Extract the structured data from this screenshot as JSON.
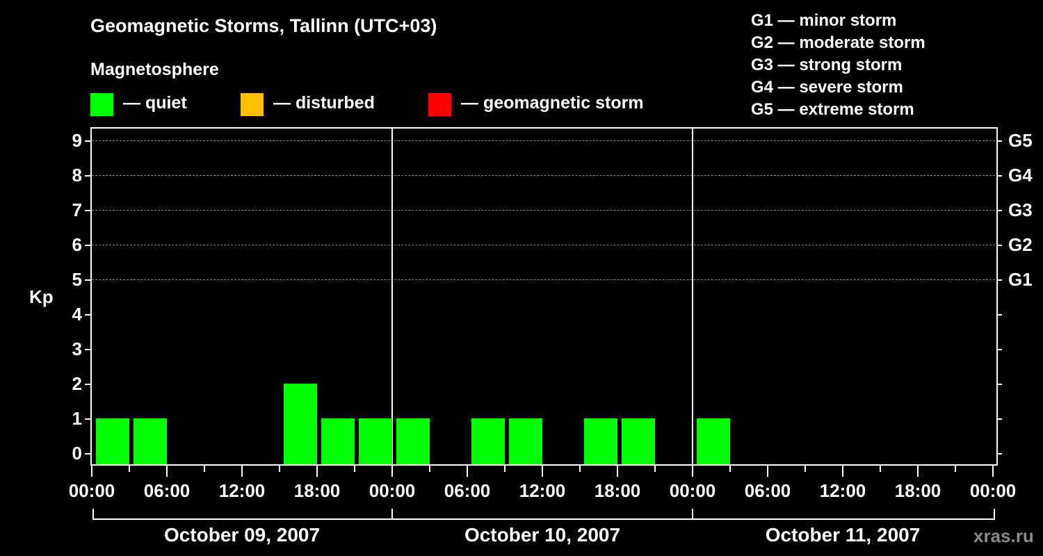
{
  "title": "Geomagnetic Storms, Tallinn (UTC+03)",
  "subtitle": "Magnetosphere",
  "legend": [
    {
      "label": "— quiet",
      "color": "#00ff00"
    },
    {
      "label": "— disturbed",
      "color": "#ffbf00"
    },
    {
      "label": "— geomagnetic storm",
      "color": "#ff0000"
    }
  ],
  "g_scale": [
    "G1 — minor storm",
    "G2 — moderate storm",
    "G3 — strong storm",
    "G4 — severe storm",
    "G5 — extreme storm"
  ],
  "watermark": "xras.ru",
  "chart_data": {
    "type": "bar",
    "title": "Geomagnetic Storms, Tallinn (UTC+03)",
    "ylabel": "Kp",
    "xlabel": "",
    "ylim": [
      0,
      9
    ],
    "yticks": [
      0,
      1,
      2,
      3,
      4,
      5,
      6,
      7,
      8,
      9
    ],
    "right_ticks": {
      "5": "G1",
      "6": "G2",
      "7": "G3",
      "8": "G4",
      "9": "G5"
    },
    "grid": "dashed horizontal at Kp 5-9",
    "x_tick_labels": [
      "00:00",
      "06:00",
      "12:00",
      "18:00",
      "00:00",
      "06:00",
      "12:00",
      "18:00",
      "00:00",
      "06:00",
      "12:00",
      "18:00",
      "00:00"
    ],
    "days": [
      "October 09, 2007",
      "October 10, 2007",
      "October 11, 2007"
    ],
    "categories": [
      "10-09 00:00",
      "10-09 03:00",
      "10-09 06:00",
      "10-09 09:00",
      "10-09 12:00",
      "10-09 15:00",
      "10-09 18:00",
      "10-09 21:00",
      "10-10 00:00",
      "10-10 03:00",
      "10-10 06:00",
      "10-10 09:00",
      "10-10 12:00",
      "10-10 15:00",
      "10-10 18:00",
      "10-10 21:00",
      "10-11 00:00"
    ],
    "values": [
      1,
      1,
      0,
      0,
      0,
      2,
      1,
      1,
      1,
      0,
      1,
      1,
      0,
      1,
      1,
      0,
      1
    ],
    "bar_color": "#00ff00"
  }
}
